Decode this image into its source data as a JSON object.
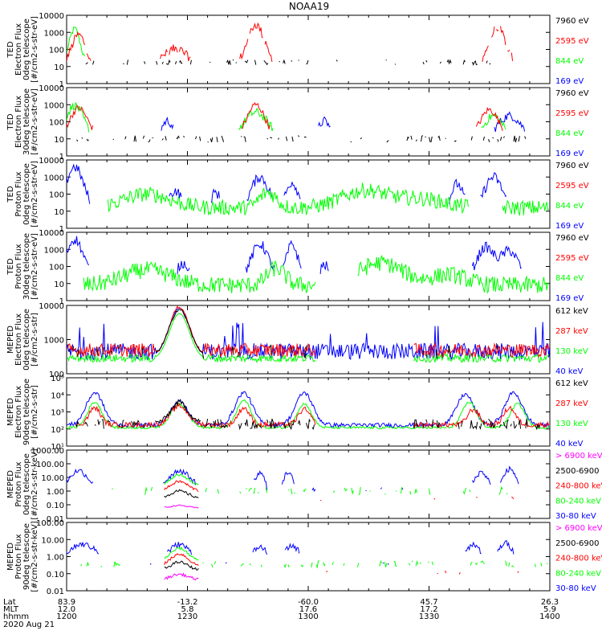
{
  "title": "NOAA19",
  "colors": {
    "black": "#000000",
    "red": "#ff0000",
    "green": "#00ff00",
    "blue": "#0000ff",
    "magenta": "#ff00ff"
  },
  "chart_data": [
    {
      "type": "line",
      "scale": "log",
      "ylabel": [
        "TED",
        "Electron Flux",
        "0deg telescope",
        "[#/cm2-s-str-eV]"
      ],
      "yticks": [
        "10000",
        "1000",
        "100",
        "10",
        "1"
      ],
      "ylim": [
        1,
        10000
      ],
      "legend": [
        {
          "label": "7960 eV",
          "color": "black"
        },
        {
          "label": "2595 eV",
          "color": "red"
        },
        {
          "label": "844 eV",
          "color": "green"
        },
        {
          "label": "169 eV",
          "color": "blue"
        }
      ]
    },
    {
      "type": "line",
      "scale": "log",
      "ylabel": [
        "TED",
        "Electron Flux",
        "30deg telescope",
        "[#/cm2-s-str-eV]"
      ],
      "yticks": [
        "10000",
        "1000",
        "100",
        "10",
        "1"
      ],
      "ylim": [
        1,
        10000
      ],
      "legend": [
        {
          "label": "7960 eV",
          "color": "black"
        },
        {
          "label": "2595 eV",
          "color": "red"
        },
        {
          "label": "844 eV",
          "color": "green"
        },
        {
          "label": "169 eV",
          "color": "blue"
        }
      ]
    },
    {
      "type": "line",
      "scale": "log",
      "ylabel": [
        "TED",
        "Proton Flux",
        "0deg telescope",
        "[#/cm2-s-str-eV]"
      ],
      "yticks": [
        "10000",
        "1000",
        "100",
        "10",
        "1"
      ],
      "ylim": [
        1,
        10000
      ],
      "legend": [
        {
          "label": "7960 eV",
          "color": "black"
        },
        {
          "label": "2595 eV",
          "color": "red"
        },
        {
          "label": "844 eV",
          "color": "green"
        },
        {
          "label": "169 eV",
          "color": "blue"
        }
      ]
    },
    {
      "type": "line",
      "scale": "log",
      "ylabel": [
        "TED",
        "Proton Flux",
        "30deg telescope",
        "[#/cm2-s-str-eV]"
      ],
      "yticks": [
        "10000",
        "1000",
        "100",
        "10",
        "1"
      ],
      "ylim": [
        1,
        10000
      ],
      "legend": [
        {
          "label": "7960 eV",
          "color": "black"
        },
        {
          "label": "2595 eV",
          "color": "red"
        },
        {
          "label": "844 eV",
          "color": "green"
        },
        {
          "label": "169 eV",
          "color": "blue"
        }
      ]
    },
    {
      "type": "line",
      "scale": "log",
      "ylabel": [
        "MEPED",
        "Electron Flux",
        "0deg telescope",
        "[#/cm2-s-str]"
      ],
      "yticks": [
        "10000",
        "1000",
        "100"
      ],
      "ylim": [
        30,
        10000
      ],
      "legend": [
        {
          "label": "612 keV",
          "color": "black"
        },
        {
          "label": "287 keV",
          "color": "red"
        },
        {
          "label": "130 keV",
          "color": "green"
        },
        {
          "label": "40 keV",
          "color": "blue"
        }
      ]
    },
    {
      "type": "line",
      "scale": "log",
      "ylabel": [
        "MEPED",
        "Electron Flux",
        "90deg telescope",
        "[#/cm2-s-str]"
      ],
      "yticks": [
        "10⁵",
        "10⁴",
        "10³",
        "10²",
        "10¹"
      ],
      "ylim": [
        10,
        100000
      ],
      "legend": [
        {
          "label": "612 keV",
          "color": "black"
        },
        {
          "label": "287 keV",
          "color": "red"
        },
        {
          "label": "130 keV",
          "color": "green"
        },
        {
          "label": "40 keV",
          "color": "blue"
        }
      ]
    },
    {
      "type": "line",
      "scale": "log",
      "ylabel": [
        "MEPED",
        "Proton Flux",
        "0deg telescope",
        "[#/cm2-s-str-keV]"
      ],
      "yticks": [
        "1000.00",
        "100.00",
        "10.00",
        "1.00",
        "0.10",
        "0.01"
      ],
      "ylim": [
        0.01,
        1000
      ],
      "legend": [
        {
          "label": "> 6900 keV",
          "color": "magenta"
        },
        {
          "label": "2500-6900",
          "color": "black"
        },
        {
          "label": "240-800 keV",
          "color": "red"
        },
        {
          "label": "80-240 keV",
          "color": "green"
        },
        {
          "label": "30-80 keV",
          "color": "blue"
        }
      ]
    },
    {
      "type": "line",
      "scale": "log",
      "ylabel": [
        "MEPED",
        "Proton Flux",
        "90deg telescope",
        "[#/cm2-s-str-keV]"
      ],
      "yticks": [
        "100.00",
        "10.00",
        "1.00",
        "0.10",
        "0.01"
      ],
      "ylim": [
        0.01,
        1000
      ],
      "legend": [
        {
          "label": "> 6900 keV",
          "color": "magenta"
        },
        {
          "label": "2500-6900",
          "color": "black"
        },
        {
          "label": "240-800 keV",
          "color": "red"
        },
        {
          "label": "80-240 keV",
          "color": "green"
        },
        {
          "label": "30-80 keV",
          "color": "blue"
        }
      ]
    }
  ],
  "xaxis": {
    "row_labels": [
      "Lat",
      "MLT",
      "hhmm"
    ],
    "date": "2020 Aug 21",
    "ticks": [
      {
        "lat": "83.9",
        "mlt": "12.0",
        "time": "1200"
      },
      {
        "lat": "-13.2",
        "mlt": "5.8",
        "time": "1230"
      },
      {
        "lat": "-60.0",
        "mlt": "17.6",
        "time": "1300"
      },
      {
        "lat": "45.7",
        "mlt": "17.2",
        "time": "1330"
      },
      {
        "lat": "26.3",
        "mlt": "5.9",
        "time": "1400"
      }
    ],
    "time_range": [
      0,
      120
    ]
  }
}
